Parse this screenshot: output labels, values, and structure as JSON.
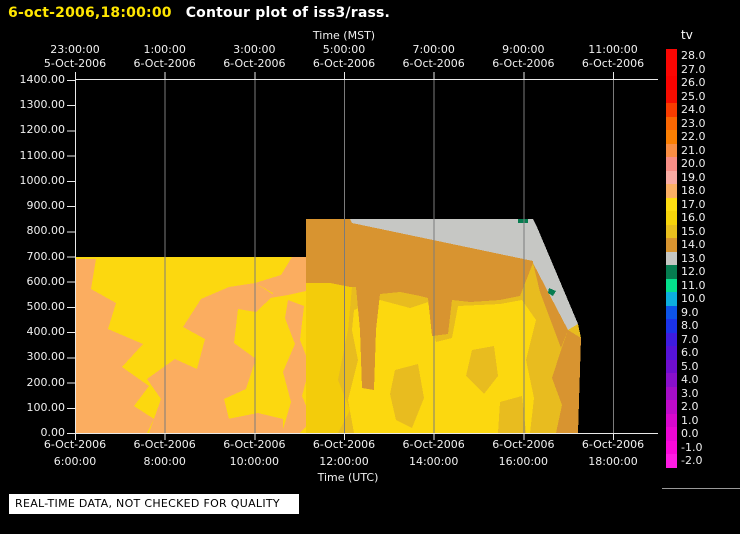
{
  "title": {
    "timestamp": "6-oct-2006,18:00:00",
    "text": "Contour plot of iss3/rass."
  },
  "notice": "REAL-TIME DATA, NOT CHECKED FOR QUALITY",
  "colors": {
    "background": "#000000",
    "frame": "#e9e9e9",
    "grid": "#7b7b7b",
    "text": "#f0f0f0",
    "title_accent": "#ffe600",
    "separator": "#999999",
    "notice_bg": "#ffffff",
    "tv18": "#fbad60",
    "tv17": "#fcd80f",
    "tv16": "#f3cc0b",
    "tv15": "#e8bc1f",
    "tv14": "#d89430",
    "tv13": "#c6c7c4",
    "tv12": "#077c50"
  },
  "chart_data": {
    "type": "contour",
    "title": "Contour plot of iss3/rass.",
    "timestamp": "6-oct-2006,18:00:00",
    "variable": "tv",
    "grid": "vertical gridlines at 2-hour intervals, drawn over data",
    "x_axis_top": {
      "label": "Time (MST)",
      "ticks": [
        {
          "time": "23:00:00",
          "date": "5-Oct-2006"
        },
        {
          "time": "1:00:00",
          "date": "6-Oct-2006"
        },
        {
          "time": "3:00:00",
          "date": "6-Oct-2006"
        },
        {
          "time": "5:00:00",
          "date": "6-Oct-2006"
        },
        {
          "time": "7:00:00",
          "date": "6-Oct-2006"
        },
        {
          "time": "9:00:00",
          "date": "6-Oct-2006"
        },
        {
          "time": "11:00:00",
          "date": "6-Oct-2006"
        }
      ]
    },
    "x_axis_bottom": {
      "label": "Time (UTC)",
      "ticks": [
        {
          "date": "6-Oct-2006",
          "time": "6:00:00"
        },
        {
          "date": "6-Oct-2006",
          "time": "8:00:00"
        },
        {
          "date": "6-Oct-2006",
          "time": "10:00:00"
        },
        {
          "date": "6-Oct-2006",
          "time": "12:00:00"
        },
        {
          "date": "6-Oct-2006",
          "time": "14:00:00"
        },
        {
          "date": "6-Oct-2006",
          "time": "16:00:00"
        },
        {
          "date": "6-Oct-2006",
          "time": "18:00:00"
        }
      ]
    },
    "y_axis": {
      "min": 0,
      "max": 1400,
      "step": 100,
      "ticks": [
        "1400.00",
        "1300.00",
        "1200.00",
        "1100.00",
        "1000.00",
        "900.00",
        "800.00",
        "700.00",
        "600.00",
        "500.00",
        "400.00",
        "300.00",
        "200.00",
        "100.00",
        "0.00"
      ]
    },
    "colorbar": {
      "label": "tv",
      "levels": [
        {
          "value": "28.0",
          "color": "#fb0603"
        },
        {
          "value": "27.0",
          "color": "#fb0603"
        },
        {
          "value": "26.0",
          "color": "#fa0200"
        },
        {
          "value": "25.0",
          "color": "#f70d00"
        },
        {
          "value": "24.0",
          "color": "#f93c00"
        },
        {
          "value": "23.0",
          "color": "#fa6602"
        },
        {
          "value": "22.0",
          "color": "#fa7f03"
        },
        {
          "value": "21.0",
          "color": "#f98e44"
        },
        {
          "value": "20.0",
          "color": "#f88e86"
        },
        {
          "value": "19.0",
          "color": "#f9aba3"
        },
        {
          "value": "18.0",
          "color": "#fbaf64"
        },
        {
          "value": "17.0",
          "color": "#fedd12"
        },
        {
          "value": "16.0",
          "color": "#f7d40b"
        },
        {
          "value": "15.0",
          "color": "#e9bf1e"
        },
        {
          "value": "14.0",
          "color": "#d89430"
        },
        {
          "value": "13.0",
          "color": "#c5c6c3"
        },
        {
          "value": "12.0",
          "color": "#067c50"
        },
        {
          "value": "11.0",
          "color": "#04e08c"
        },
        {
          "value": "10.0",
          "color": "#0caede"
        },
        {
          "value": "9.0",
          "color": "#0d54e7"
        },
        {
          "value": "8.0",
          "color": "#1b33e9"
        },
        {
          "value": "7.0",
          "color": "#3e1cdf"
        },
        {
          "value": "6.0",
          "color": "#5513d7"
        },
        {
          "value": "5.0",
          "color": "#6f0ece"
        },
        {
          "value": "4.0",
          "color": "#8910cb"
        },
        {
          "value": "3.0",
          "color": "#a40ec6"
        },
        {
          "value": "2.0",
          "color": "#bf0bc9"
        },
        {
          "value": "1.0",
          "color": "#d808cd"
        },
        {
          "value": "0.0",
          "color": "#eb07d3"
        },
        {
          "value": "-1.0",
          "color": "#f909d9"
        },
        {
          "value": "-2.0",
          "color": "#fd1ce2"
        }
      ]
    },
    "regions": [
      {
        "tv": "16-17",
        "desc": "Dominant yellow field, 6:00-17:20 UTC, 0-700 m"
      },
      {
        "tv": "18",
        "desc": "Salmon patches 6:00-11:40 UTC below ~450 m and along left edge up to 700 m"
      },
      {
        "tv": "14-15",
        "desc": "Mustard/gold band near top (700-840 m) from ~11:40 to 16:00 UTC with tongues reaching down to ~200-400 m"
      },
      {
        "tv": "13",
        "desc": "Gray wedge 750-840 m from ~12:40 to 16:00 UTC and along the sloping data edge after 16:00"
      },
      {
        "tv": "12",
        "desc": "Tiny green specks near 840 m at ~15:50 UTC and ~400 m at ~16:40 UTC"
      },
      {
        "coverage": "Data 6:00-11:40 UTC reaches 700 m; 11:40-16:00 UTC reaches ~840 m; after 16:00 top edge slopes down, coverage ends ~17:20 UTC"
      }
    ]
  }
}
